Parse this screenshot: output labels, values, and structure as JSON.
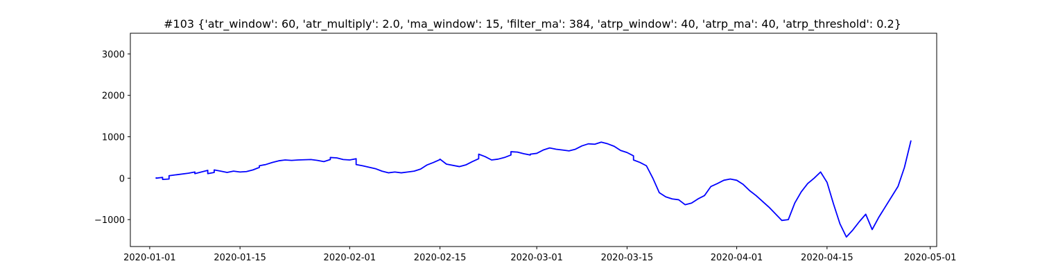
{
  "chart_data": {
    "type": "line",
    "title": "#103 {'atr_window': 60, 'atr_multiply': 2.0, 'ma_window': 15, 'filter_ma': 384, 'atrp_window': 40, 'atrp_ma': 40, 'atrp_threshold': 0.2}",
    "xlabel": "",
    "ylabel": "",
    "grid": false,
    "x_axis_type": "date",
    "xlim": [
      "2019-12-29",
      "2020-05-02"
    ],
    "ylim": [
      -1650,
      3500
    ],
    "x_ticks": [
      "2020-01-01",
      "2020-01-15",
      "2020-02-01",
      "2020-02-15",
      "2020-03-01",
      "2020-03-15",
      "2020-04-01",
      "2020-04-15",
      "2020-05-01"
    ],
    "y_ticks": [
      -1000,
      0,
      1000,
      2000,
      3000
    ],
    "series": [
      {
        "color": "#0000ff",
        "points": [
          [
            "2020-01-02",
            10
          ],
          [
            "2020-01-02",
            0
          ],
          [
            "2020-01-03",
            20
          ],
          [
            "2020-01-03",
            -30
          ],
          [
            "2020-01-04",
            -20
          ],
          [
            "2020-01-04",
            60
          ],
          [
            "2020-01-05",
            80
          ],
          [
            "2020-01-07",
            120
          ],
          [
            "2020-01-08",
            150
          ],
          [
            "2020-01-08",
            110
          ],
          [
            "2020-01-09",
            150
          ],
          [
            "2020-01-10",
            190
          ],
          [
            "2020-01-10",
            110
          ],
          [
            "2020-01-11",
            140
          ],
          [
            "2020-01-11",
            200
          ],
          [
            "2020-01-12",
            170
          ],
          [
            "2020-01-13",
            140
          ],
          [
            "2020-01-14",
            170
          ],
          [
            "2020-01-15",
            150
          ],
          [
            "2020-01-16",
            160
          ],
          [
            "2020-01-17",
            200
          ],
          [
            "2020-01-18",
            260
          ],
          [
            "2020-01-18",
            300
          ],
          [
            "2020-01-19",
            330
          ],
          [
            "2020-01-20",
            380
          ],
          [
            "2020-01-21",
            420
          ],
          [
            "2020-01-22",
            440
          ],
          [
            "2020-01-23",
            430
          ],
          [
            "2020-01-24",
            440
          ],
          [
            "2020-01-26",
            450
          ],
          [
            "2020-01-27",
            430
          ],
          [
            "2020-01-28",
            400
          ],
          [
            "2020-01-29",
            450
          ],
          [
            "2020-01-29",
            500
          ],
          [
            "2020-01-30",
            490
          ],
          [
            "2020-01-31",
            450
          ],
          [
            "2020-02-01",
            440
          ],
          [
            "2020-02-02",
            470
          ],
          [
            "2020-02-02",
            330
          ],
          [
            "2020-02-03",
            300
          ],
          [
            "2020-02-05",
            230
          ],
          [
            "2020-02-06",
            170
          ],
          [
            "2020-02-07",
            130
          ],
          [
            "2020-02-08",
            150
          ],
          [
            "2020-02-09",
            130
          ],
          [
            "2020-02-10",
            150
          ],
          [
            "2020-02-11",
            170
          ],
          [
            "2020-02-12",
            220
          ],
          [
            "2020-02-13",
            320
          ],
          [
            "2020-02-14",
            380
          ],
          [
            "2020-02-15",
            450
          ],
          [
            "2020-02-15",
            460
          ],
          [
            "2020-02-16",
            340
          ],
          [
            "2020-02-18",
            280
          ],
          [
            "2020-02-19",
            320
          ],
          [
            "2020-02-20",
            400
          ],
          [
            "2020-02-21",
            470
          ],
          [
            "2020-02-21",
            580
          ],
          [
            "2020-02-22",
            520
          ],
          [
            "2020-02-23",
            440
          ],
          [
            "2020-02-24",
            460
          ],
          [
            "2020-02-25",
            500
          ],
          [
            "2020-02-26",
            560
          ],
          [
            "2020-02-26",
            640
          ],
          [
            "2020-02-27",
            630
          ],
          [
            "2020-02-28",
            590
          ],
          [
            "2020-02-29",
            560
          ],
          [
            "2020-02-29",
            580
          ],
          [
            "2020-03-01",
            600
          ],
          [
            "2020-03-02",
            680
          ],
          [
            "2020-03-03",
            730
          ],
          [
            "2020-03-04",
            700
          ],
          [
            "2020-03-05",
            680
          ],
          [
            "2020-03-06",
            660
          ],
          [
            "2020-03-07",
            700
          ],
          [
            "2020-03-08",
            780
          ],
          [
            "2020-03-09",
            830
          ],
          [
            "2020-03-10",
            820
          ],
          [
            "2020-03-11",
            870
          ],
          [
            "2020-03-12",
            830
          ],
          [
            "2020-03-13",
            770
          ],
          [
            "2020-03-14",
            670
          ],
          [
            "2020-03-15",
            620
          ],
          [
            "2020-03-16",
            540
          ],
          [
            "2020-03-16",
            440
          ],
          [
            "2020-03-17",
            380
          ],
          [
            "2020-03-18",
            300
          ],
          [
            "2020-03-19",
            0
          ],
          [
            "2020-03-20",
            -350
          ],
          [
            "2020-03-21",
            -450
          ],
          [
            "2020-03-22",
            -500
          ],
          [
            "2020-03-23",
            -520
          ],
          [
            "2020-03-24",
            -640
          ],
          [
            "2020-03-25",
            -600
          ],
          [
            "2020-03-26",
            -500
          ],
          [
            "2020-03-27",
            -420
          ],
          [
            "2020-03-28",
            -200
          ],
          [
            "2020-03-29",
            -130
          ],
          [
            "2020-03-30",
            -50
          ],
          [
            "2020-03-31",
            -20
          ],
          [
            "2020-04-01",
            -50
          ],
          [
            "2020-04-02",
            -150
          ],
          [
            "2020-04-03",
            -300
          ],
          [
            "2020-04-04",
            -420
          ],
          [
            "2020-04-05",
            -560
          ],
          [
            "2020-04-06",
            -700
          ],
          [
            "2020-04-07",
            -860
          ],
          [
            "2020-04-08",
            -1020
          ],
          [
            "2020-04-09",
            -1000
          ],
          [
            "2020-04-10",
            -600
          ],
          [
            "2020-04-11",
            -330
          ],
          [
            "2020-04-12",
            -130
          ],
          [
            "2020-04-13",
            0
          ],
          [
            "2020-04-14",
            150
          ],
          [
            "2020-04-15",
            -100
          ],
          [
            "2020-04-16",
            -620
          ],
          [
            "2020-04-17",
            -1100
          ],
          [
            "2020-04-18",
            -1420
          ],
          [
            "2020-04-19",
            -1250
          ],
          [
            "2020-04-20",
            -1050
          ],
          [
            "2020-04-21",
            -870
          ],
          [
            "2020-04-22",
            -1240
          ],
          [
            "2020-04-23",
            -950
          ],
          [
            "2020-04-24",
            -700
          ],
          [
            "2020-04-25",
            -450
          ],
          [
            "2020-04-26",
            -200
          ],
          [
            "2020-04-27",
            260
          ],
          [
            "2020-04-28",
            900
          ]
        ]
      }
    ]
  }
}
